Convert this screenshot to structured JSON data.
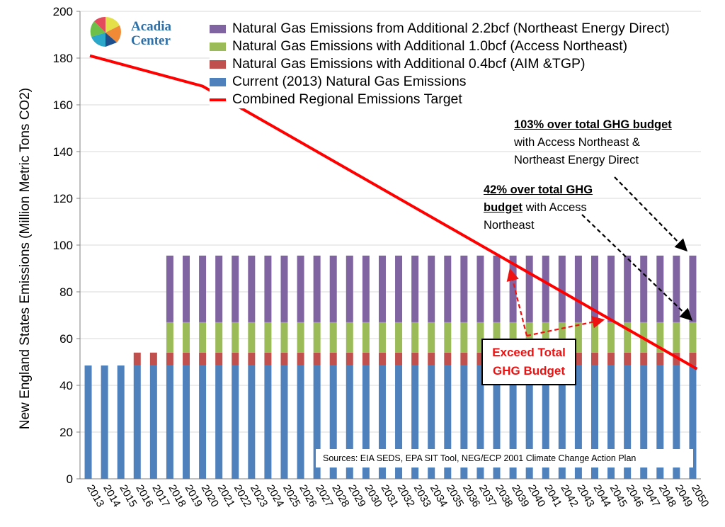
{
  "logo": {
    "line1": "Acadia",
    "line2": "Center"
  },
  "annotations": {
    "a103_bold": "103% over total GHG budget",
    "a103_rest": [
      "with Access Northeast &",
      "Northeast Energy Direct"
    ],
    "a42_bold_1": "42% over total GHG",
    "a42_bold_2": "budget",
    "a42_rest_1": " with Access",
    "a42_rest_2": "Northeast",
    "exceed_1": "Exceed Total",
    "exceed_2": "GHG Budget",
    "sources": "Sources: EIA SEDS,  EPA SIT Tool, NEG/ECP 2001 Climate Change Action Plan"
  },
  "legend": [
    {
      "label": "Natural Gas Emissions from Additional 2.2bcf (Northeast Energy Direct)",
      "color": "#8064a2",
      "kind": "box"
    },
    {
      "label": "Natural Gas Emissions with Additional 1.0bcf (Access Northeast)",
      "color": "#9bbb59",
      "kind": "box"
    },
    {
      "label": "Natural Gas Emissions with Additional 0.4bcf (AIM &TGP)",
      "color": "#c0504d",
      "kind": "box"
    },
    {
      "label": "Current (2013) Natural Gas Emissions",
      "color": "#4f81bd",
      "kind": "box"
    },
    {
      "label": "Combined Regional Emissions Target",
      "color": "#ff0000",
      "kind": "line"
    }
  ],
  "chart_data": {
    "type": "bar",
    "stacked": true,
    "ylabel": "New England States Emissions (Million Metric Tons CO2)",
    "ylim": [
      0,
      200
    ],
    "yticks": [
      0,
      20,
      40,
      60,
      80,
      100,
      120,
      140,
      160,
      180,
      200
    ],
    "categories": [
      "2013",
      "2014",
      "2015",
      "2016",
      "2017",
      "2018",
      "2019",
      "2020",
      "2021",
      "2022",
      "2023",
      "2024",
      "2025",
      "2026",
      "2027",
      "2028",
      "2029",
      "2030",
      "2031",
      "2032",
      "2033",
      "2034",
      "2035",
      "2036",
      "2037",
      "2038",
      "2039",
      "2040",
      "2041",
      "2042",
      "2043",
      "2044",
      "2045",
      "2046",
      "2047",
      "2048",
      "2049",
      "2050"
    ],
    "series": [
      {
        "name": "Current (2013) Natural Gas Emissions",
        "color": "#4f81bd",
        "values": [
          48.5,
          48.5,
          48.5,
          48.5,
          48.5,
          48.5,
          48.5,
          48.5,
          48.5,
          48.5,
          48.5,
          48.5,
          48.5,
          48.5,
          48.5,
          48.5,
          48.5,
          48.5,
          48.5,
          48.5,
          48.5,
          48.5,
          48.5,
          48.5,
          48.5,
          48.5,
          48.5,
          48.5,
          48.5,
          48.5,
          48.5,
          48.5,
          48.5,
          48.5,
          48.5,
          48.5,
          48.5,
          48.5
        ]
      },
      {
        "name": "Natural Gas Emissions with Additional 0.4bcf (AIM &TGP)",
        "color": "#c0504d",
        "values": [
          0,
          0,
          0,
          5.5,
          5.5,
          5.5,
          5.5,
          5.5,
          5.5,
          5.5,
          5.5,
          5.5,
          5.5,
          5.5,
          5.5,
          5.5,
          5.5,
          5.5,
          5.5,
          5.5,
          5.5,
          5.5,
          5.5,
          5.5,
          5.5,
          5.5,
          5.5,
          5.5,
          5.5,
          5.5,
          5.5,
          5.5,
          5.5,
          5.5,
          5.5,
          5.5,
          5.5,
          5.5
        ]
      },
      {
        "name": "Natural Gas Emissions with Additional 1.0bcf (Access Northeast)",
        "color": "#9bbb59",
        "values": [
          0,
          0,
          0,
          0,
          0,
          13,
          13,
          13,
          13,
          13,
          13,
          13,
          13,
          13,
          13,
          13,
          13,
          13,
          13,
          13,
          13,
          13,
          13,
          13,
          13,
          13,
          13,
          13,
          13,
          13,
          13,
          13,
          13,
          13,
          13,
          13,
          13,
          13
        ]
      },
      {
        "name": "Natural Gas Emissions from Additional 2.2bcf (Northeast Energy Direct)",
        "color": "#8064a2",
        "values": [
          0,
          0,
          0,
          0,
          0,
          28.5,
          28.5,
          28.5,
          28.5,
          28.5,
          28.5,
          28.5,
          28.5,
          28.5,
          28.5,
          28.5,
          28.5,
          28.5,
          28.5,
          28.5,
          28.5,
          28.5,
          28.5,
          28.5,
          28.5,
          28.5,
          28.5,
          28.5,
          28.5,
          28.5,
          28.5,
          28.5,
          28.5,
          28.5,
          28.5,
          28.5,
          28.5,
          28.5
        ]
      }
    ],
    "target_line": {
      "name": "Combined Regional Emissions Target",
      "color": "#ff0000",
      "points": [
        [
          "2013",
          181
        ],
        [
          "2020",
          168
        ],
        [
          "2050",
          47
        ]
      ]
    }
  }
}
